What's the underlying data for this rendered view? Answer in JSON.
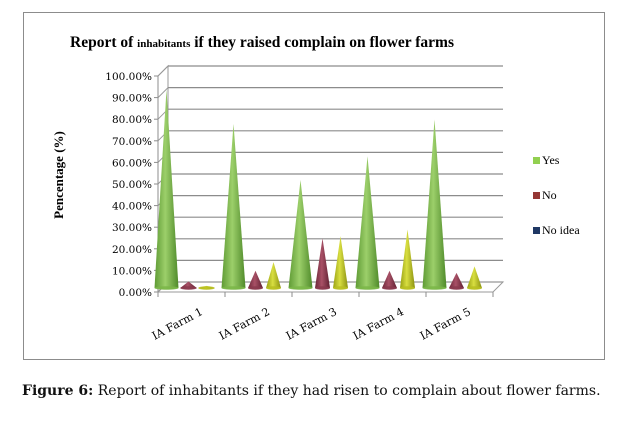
{
  "chart_data": {
    "type": "bar",
    "subtype": "3d-cone",
    "title_parts": [
      "Report of ",
      "inhabitants",
      " if they raised complain on flower farms"
    ],
    "ylabel": "Pencentage (%)",
    "xlabel": "",
    "ylim": [
      0,
      100
    ],
    "yticks": [
      "0.00%",
      "10.00%",
      "20.00%",
      "30.00%",
      "40.00%",
      "50.00%",
      "60.00%",
      "70.00%",
      "80.00%",
      "90.00%",
      "100.00%"
    ],
    "categories": [
      "IA Farm 1",
      "IA Farm 2",
      "IA Farm 3",
      "IA Farm 4",
      "IA Farm 5"
    ],
    "series": [
      {
        "name": "Yes",
        "values": [
          92,
          76,
          50,
          61,
          78
        ],
        "color": "#7ab648",
        "legend_color": "#92d050"
      },
      {
        "name": "No",
        "values": [
          3,
          8,
          23,
          8,
          7
        ],
        "color": "#8a3a4e",
        "legend_color": "#953735"
      },
      {
        "name": "No idea",
        "values": [
          1,
          12,
          24,
          27,
          10
        ],
        "color": "#b8c020",
        "legend_color": "#1f3864"
      }
    ],
    "grid": true,
    "legend_position": "right"
  },
  "caption": {
    "label": "Figure 6:",
    "text": " Report of inhabitants if they had risen to complain about flower farms."
  }
}
